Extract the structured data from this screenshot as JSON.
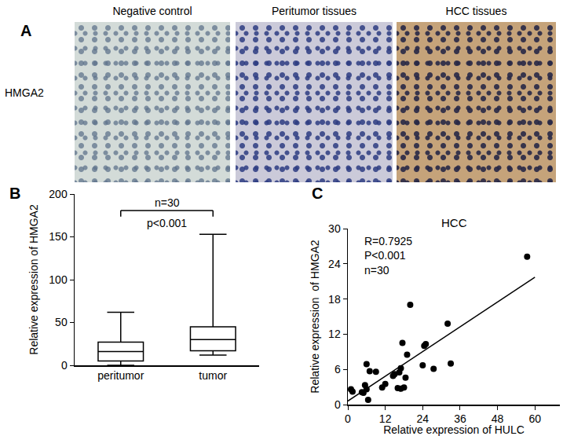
{
  "panel_a": {
    "label": "A",
    "row_label": "HMGA2",
    "images": [
      "Negative control",
      "Peritumor tissues",
      "HCC tissues"
    ]
  },
  "chart_data": [
    {
      "type": "box",
      "label": "B",
      "categories": [
        "peritumor",
        "tumor"
      ],
      "boxes": [
        {
          "min": 0,
          "q1": 5,
          "median": 16,
          "q3": 27,
          "max": 62
        },
        {
          "min": 12,
          "q1": 17,
          "median": 30,
          "q3": 45,
          "max": 153
        }
      ],
      "ylabel": "Relative expression of HMGA2",
      "ylim": [
        0,
        200
      ],
      "yticks": [
        0,
        50,
        100,
        150,
        200
      ],
      "annotations": [
        "n=30",
        "p<0.001"
      ],
      "color": "#000000",
      "grid": false
    },
    {
      "type": "scatter",
      "label": "C",
      "title": "HCC",
      "xlabel": "Relative expression of HULC",
      "ylabel": "Relative expression  of HMGA2",
      "x": [
        57.5,
        32,
        33,
        25,
        24.5,
        24,
        27.5,
        20,
        19,
        18.5,
        17.5,
        17,
        16.5,
        17,
        16,
        18,
        15,
        14.5,
        12,
        11,
        9,
        7,
        6,
        5.5,
        6,
        5,
        4.5,
        6.5,
        1,
        1.5
      ],
      "values": [
        25.2,
        13.8,
        7,
        10.3,
        10,
        6.7,
        6.1,
        17,
        8.5,
        4.6,
        10.5,
        6.2,
        5.5,
        2.7,
        2.8,
        2.9,
        5.2,
        4.9,
        3.5,
        2.9,
        5.6,
        5.7,
        6.9,
        3.3,
        2.6,
        2,
        2.1,
        0.8,
        2.6,
        2.2
      ],
      "fit": {
        "x": [
          0,
          60
        ],
        "values": [
          0.6,
          21.7
        ]
      },
      "xlim": [
        0,
        68
      ],
      "xticks": [
        0,
        12,
        24,
        36,
        48,
        60
      ],
      "ylim": [
        0,
        30
      ],
      "yticks": [
        0,
        6,
        12,
        18,
        24,
        30
      ],
      "annotations": [
        "R=0.7925",
        "P<0.001",
        "n=30"
      ],
      "color": "#000000",
      "marker": "circle",
      "grid": false
    }
  ]
}
